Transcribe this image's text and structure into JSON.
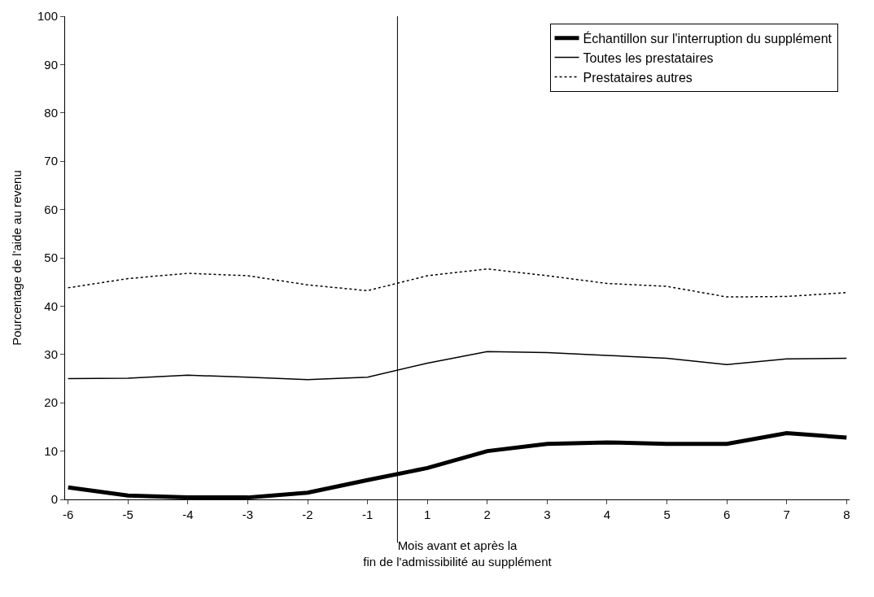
{
  "chart_data": {
    "type": "line",
    "xlabel": "Mois avant et après la\nfin de l'admissibilité au supplément",
    "ylabel": "Pourcentage de l'aide au revenu",
    "categories": [
      "-6",
      "-5",
      "-4",
      "-3",
      "-2",
      "-1",
      "1",
      "2",
      "3",
      "4",
      "5",
      "6",
      "7",
      "8"
    ],
    "series": [
      {
        "name": "Échantillon sur l'interruption du supplément",
        "color": "#000000",
        "line_style": "solid",
        "values": [
          2.5,
          0.8,
          0.4,
          0.4,
          1.4,
          4,
          6.5,
          10,
          11.5,
          11.8,
          11.5,
          11.5,
          13.7,
          12.8
        ]
      },
      {
        "name": "Toutes les prestataires",
        "color": "#000000",
        "line_style": "solid",
        "values": [
          25,
          25.1,
          25.7,
          25.3,
          24.8,
          25.3,
          28.2,
          30.6,
          30.4,
          29.8,
          29.2,
          27.9,
          29.1,
          29.2
        ]
      },
      {
        "name": "Prestataires autres",
        "color": "#000000",
        "line_style": "dotted",
        "values": [
          43.8,
          45.7,
          46.8,
          46.3,
          44.4,
          43.2,
          46.3,
          47.7,
          46.3,
          44.7,
          44.1,
          41.9,
          42.0,
          42.8
        ]
      }
    ],
    "ylim": [
      0,
      100
    ],
    "yticks": [
      0,
      10,
      20,
      30,
      40,
      50,
      60,
      70,
      80,
      90,
      100
    ],
    "grid": false,
    "legend": "top right",
    "marker": "none"
  }
}
